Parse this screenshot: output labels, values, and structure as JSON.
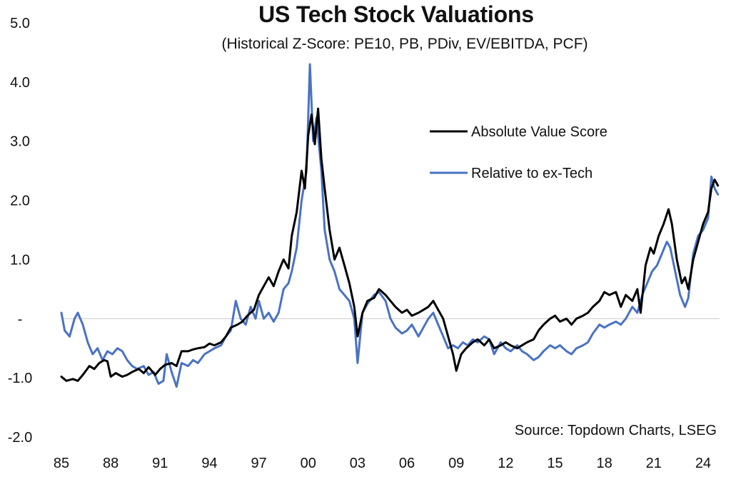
{
  "chart_data": {
    "type": "line",
    "title": "US Tech Stock Valuations",
    "subtitle": "(Historical Z-Score: PE10, PB, PDiv, EV/EBITDA, PCF)",
    "source": "Source: Topdown Charts, LSEG",
    "xlim": [
      1985,
      2025
    ],
    "ylim": [
      -2.0,
      5.0
    ],
    "x_ticks": [
      {
        "value": 1985,
        "label": "85"
      },
      {
        "value": 1988,
        "label": "88"
      },
      {
        "value": 1991,
        "label": "91"
      },
      {
        "value": 1994,
        "label": "94"
      },
      {
        "value": 1997,
        "label": "97"
      },
      {
        "value": 2000,
        "label": "00"
      },
      {
        "value": 2003,
        "label": "03"
      },
      {
        "value": 2006,
        "label": "06"
      },
      {
        "value": 2009,
        "label": "09"
      },
      {
        "value": 2012,
        "label": "12"
      },
      {
        "value": 2015,
        "label": "15"
      },
      {
        "value": 2018,
        "label": "18"
      },
      {
        "value": 2021,
        "label": "21"
      },
      {
        "value": 2024,
        "label": "24"
      }
    ],
    "y_ticks": [
      {
        "value": 5.0,
        "label": "5.0"
      },
      {
        "value": 4.0,
        "label": "4.0"
      },
      {
        "value": 3.0,
        "label": "3.0"
      },
      {
        "value": 2.0,
        "label": "2.0"
      },
      {
        "value": 1.0,
        "label": "1.0"
      },
      {
        "value": 0,
        "label": "-"
      },
      {
        "value": -1.0,
        "label": "-1.0"
      },
      {
        "value": -2.0,
        "label": "-2.0"
      }
    ],
    "grid": false,
    "zero_line": true,
    "legend_position": "upper-right",
    "series": [
      {
        "name": "Absolute Value Score",
        "color": "#000000",
        "points": [
          [
            1985.0,
            -0.98
          ],
          [
            1985.3,
            -1.05
          ],
          [
            1985.7,
            -1.02
          ],
          [
            1986.0,
            -1.05
          ],
          [
            1986.3,
            -0.95
          ],
          [
            1986.7,
            -0.8
          ],
          [
            1987.0,
            -0.85
          ],
          [
            1987.3,
            -0.75
          ],
          [
            1987.6,
            -0.7
          ],
          [
            1987.8,
            -0.72
          ],
          [
            1988.0,
            -0.98
          ],
          [
            1988.3,
            -0.92
          ],
          [
            1988.7,
            -0.98
          ],
          [
            1989.0,
            -0.95
          ],
          [
            1989.3,
            -0.9
          ],
          [
            1989.7,
            -0.85
          ],
          [
            1990.0,
            -0.92
          ],
          [
            1990.3,
            -0.82
          ],
          [
            1990.7,
            -0.95
          ],
          [
            1991.0,
            -0.85
          ],
          [
            1991.3,
            -0.78
          ],
          [
            1991.7,
            -0.75
          ],
          [
            1992.0,
            -0.8
          ],
          [
            1992.3,
            -0.55
          ],
          [
            1992.7,
            -0.55
          ],
          [
            1993.0,
            -0.52
          ],
          [
            1993.3,
            -0.5
          ],
          [
            1993.7,
            -0.48
          ],
          [
            1994.0,
            -0.42
          ],
          [
            1994.3,
            -0.45
          ],
          [
            1994.7,
            -0.4
          ],
          [
            1995.0,
            -0.3
          ],
          [
            1995.3,
            -0.15
          ],
          [
            1995.7,
            -0.1
          ],
          [
            1996.0,
            -0.05
          ],
          [
            1996.3,
            0.05
          ],
          [
            1996.7,
            0.15
          ],
          [
            1997.0,
            0.4
          ],
          [
            1997.3,
            0.55
          ],
          [
            1997.6,
            0.7
          ],
          [
            1997.9,
            0.55
          ],
          [
            1998.2,
            0.8
          ],
          [
            1998.5,
            1.0
          ],
          [
            1998.8,
            0.85
          ],
          [
            1999.0,
            1.4
          ],
          [
            1999.3,
            1.8
          ],
          [
            1999.6,
            2.5
          ],
          [
            1999.8,
            2.2
          ],
          [
            2000.0,
            3.1
          ],
          [
            2000.2,
            3.45
          ],
          [
            2000.4,
            2.95
          ],
          [
            2000.6,
            3.55
          ],
          [
            2000.8,
            2.7
          ],
          [
            2001.0,
            2.2
          ],
          [
            2001.3,
            1.5
          ],
          [
            2001.6,
            1.0
          ],
          [
            2001.9,
            1.2
          ],
          [
            2002.2,
            0.9
          ],
          [
            2002.5,
            0.6
          ],
          [
            2002.8,
            0.2
          ],
          [
            2003.0,
            -0.3
          ],
          [
            2003.3,
            0.1
          ],
          [
            2003.6,
            0.3
          ],
          [
            2004.0,
            0.35
          ],
          [
            2004.3,
            0.5
          ],
          [
            2004.7,
            0.4
          ],
          [
            2005.0,
            0.3
          ],
          [
            2005.3,
            0.2
          ],
          [
            2005.7,
            0.1
          ],
          [
            2006.0,
            0.15
          ],
          [
            2006.3,
            0.05
          ],
          [
            2006.7,
            0.1
          ],
          [
            2007.0,
            0.15
          ],
          [
            2007.3,
            0.2
          ],
          [
            2007.6,
            0.3
          ],
          [
            2007.9,
            0.15
          ],
          [
            2008.2,
            0.0
          ],
          [
            2008.5,
            -0.3
          ],
          [
            2008.8,
            -0.6
          ],
          [
            2009.0,
            -0.88
          ],
          [
            2009.3,
            -0.6
          ],
          [
            2009.6,
            -0.5
          ],
          [
            2010.0,
            -0.4
          ],
          [
            2010.3,
            -0.35
          ],
          [
            2010.7,
            -0.45
          ],
          [
            2011.0,
            -0.35
          ],
          [
            2011.3,
            -0.5
          ],
          [
            2011.7,
            -0.45
          ],
          [
            2012.0,
            -0.4
          ],
          [
            2012.3,
            -0.45
          ],
          [
            2012.7,
            -0.5
          ],
          [
            2013.0,
            -0.45
          ],
          [
            2013.3,
            -0.4
          ],
          [
            2013.7,
            -0.35
          ],
          [
            2014.0,
            -0.2
          ],
          [
            2014.3,
            -0.1
          ],
          [
            2014.7,
            0.0
          ],
          [
            2015.0,
            0.05
          ],
          [
            2015.3,
            -0.05
          ],
          [
            2015.7,
            0.0
          ],
          [
            2016.0,
            -0.1
          ],
          [
            2016.3,
            0.0
          ],
          [
            2016.7,
            0.05
          ],
          [
            2017.0,
            0.1
          ],
          [
            2017.3,
            0.2
          ],
          [
            2017.7,
            0.3
          ],
          [
            2018.0,
            0.45
          ],
          [
            2018.3,
            0.4
          ],
          [
            2018.7,
            0.45
          ],
          [
            2019.0,
            0.2
          ],
          [
            2019.3,
            0.4
          ],
          [
            2019.7,
            0.3
          ],
          [
            2020.0,
            0.5
          ],
          [
            2020.2,
            0.1
          ],
          [
            2020.5,
            0.9
          ],
          [
            2020.8,
            1.2
          ],
          [
            2021.0,
            1.1
          ],
          [
            2021.3,
            1.4
          ],
          [
            2021.6,
            1.6
          ],
          [
            2021.9,
            1.85
          ],
          [
            2022.1,
            1.6
          ],
          [
            2022.4,
            1.0
          ],
          [
            2022.7,
            0.6
          ],
          [
            2022.9,
            0.7
          ],
          [
            2023.1,
            0.5
          ],
          [
            2023.4,
            1.0
          ],
          [
            2023.7,
            1.3
          ],
          [
            2024.0,
            1.6
          ],
          [
            2024.3,
            1.8
          ],
          [
            2024.5,
            2.2
          ],
          [
            2024.7,
            2.35
          ],
          [
            2024.9,
            2.25
          ]
        ]
      },
      {
        "name": "Relative to ex-Tech",
        "color": "#4a72c4",
        "points": [
          [
            1985.0,
            0.1
          ],
          [
            1985.2,
            -0.2
          ],
          [
            1985.5,
            -0.3
          ],
          [
            1985.8,
            0.0
          ],
          [
            1986.0,
            0.1
          ],
          [
            1986.3,
            -0.1
          ],
          [
            1986.6,
            -0.4
          ],
          [
            1986.9,
            -0.6
          ],
          [
            1987.2,
            -0.5
          ],
          [
            1987.5,
            -0.7
          ],
          [
            1987.8,
            -0.55
          ],
          [
            1988.1,
            -0.6
          ],
          [
            1988.4,
            -0.5
          ],
          [
            1988.7,
            -0.55
          ],
          [
            1989.0,
            -0.7
          ],
          [
            1989.3,
            -0.8
          ],
          [
            1989.6,
            -0.85
          ],
          [
            1990.0,
            -0.8
          ],
          [
            1990.3,
            -0.95
          ],
          [
            1990.6,
            -0.9
          ],
          [
            1990.9,
            -1.1
          ],
          [
            1991.2,
            -1.05
          ],
          [
            1991.4,
            -0.6
          ],
          [
            1991.7,
            -0.9
          ],
          [
            1992.0,
            -1.15
          ],
          [
            1992.3,
            -0.75
          ],
          [
            1992.7,
            -0.8
          ],
          [
            1993.0,
            -0.7
          ],
          [
            1993.3,
            -0.75
          ],
          [
            1993.7,
            -0.6
          ],
          [
            1994.0,
            -0.55
          ],
          [
            1994.3,
            -0.5
          ],
          [
            1994.7,
            -0.45
          ],
          [
            1995.0,
            -0.3
          ],
          [
            1995.3,
            -0.2
          ],
          [
            1995.6,
            0.3
          ],
          [
            1995.9,
            0.0
          ],
          [
            1996.2,
            -0.1
          ],
          [
            1996.5,
            0.2
          ],
          [
            1996.8,
            0.0
          ],
          [
            1997.0,
            0.3
          ],
          [
            1997.3,
            0.0
          ],
          [
            1997.6,
            0.1
          ],
          [
            1997.9,
            -0.05
          ],
          [
            1998.2,
            0.1
          ],
          [
            1998.5,
            0.5
          ],
          [
            1998.8,
            0.6
          ],
          [
            1999.0,
            0.8
          ],
          [
            1999.3,
            1.2
          ],
          [
            1999.6,
            2.0
          ],
          [
            1999.9,
            2.5
          ],
          [
            2000.1,
            4.3
          ],
          [
            2000.3,
            3.0
          ],
          [
            2000.5,
            3.4
          ],
          [
            2000.8,
            2.5
          ],
          [
            2001.0,
            1.5
          ],
          [
            2001.3,
            1.0
          ],
          [
            2001.6,
            0.8
          ],
          [
            2001.9,
            0.5
          ],
          [
            2002.2,
            0.4
          ],
          [
            2002.5,
            0.3
          ],
          [
            2002.8,
            0.0
          ],
          [
            2003.0,
            -0.75
          ],
          [
            2003.3,
            0.1
          ],
          [
            2003.6,
            0.25
          ],
          [
            2004.0,
            0.4
          ],
          [
            2004.3,
            0.45
          ],
          [
            2004.7,
            0.3
          ],
          [
            2005.0,
            0.0
          ],
          [
            2005.3,
            -0.15
          ],
          [
            2005.7,
            -0.25
          ],
          [
            2006.0,
            -0.2
          ],
          [
            2006.3,
            -0.1
          ],
          [
            2006.7,
            -0.3
          ],
          [
            2007.0,
            -0.15
          ],
          [
            2007.3,
            0.0
          ],
          [
            2007.6,
            0.1
          ],
          [
            2007.9,
            -0.1
          ],
          [
            2008.2,
            -0.3
          ],
          [
            2008.5,
            -0.5
          ],
          [
            2008.8,
            -0.45
          ],
          [
            2009.1,
            -0.5
          ],
          [
            2009.4,
            -0.4
          ],
          [
            2009.7,
            -0.45
          ],
          [
            2010.0,
            -0.35
          ],
          [
            2010.3,
            -0.4
          ],
          [
            2010.7,
            -0.3
          ],
          [
            2011.0,
            -0.35
          ],
          [
            2011.3,
            -0.6
          ],
          [
            2011.7,
            -0.4
          ],
          [
            2012.0,
            -0.5
          ],
          [
            2012.3,
            -0.55
          ],
          [
            2012.7,
            -0.45
          ],
          [
            2013.0,
            -0.55
          ],
          [
            2013.3,
            -0.6
          ],
          [
            2013.7,
            -0.7
          ],
          [
            2014.0,
            -0.65
          ],
          [
            2014.3,
            -0.55
          ],
          [
            2014.7,
            -0.45
          ],
          [
            2015.0,
            -0.5
          ],
          [
            2015.3,
            -0.45
          ],
          [
            2015.7,
            -0.55
          ],
          [
            2016.0,
            -0.6
          ],
          [
            2016.3,
            -0.5
          ],
          [
            2016.7,
            -0.45
          ],
          [
            2017.0,
            -0.4
          ],
          [
            2017.3,
            -0.25
          ],
          [
            2017.7,
            -0.1
          ],
          [
            2018.0,
            -0.15
          ],
          [
            2018.3,
            -0.1
          ],
          [
            2018.7,
            -0.05
          ],
          [
            2019.0,
            -0.1
          ],
          [
            2019.3,
            0.0
          ],
          [
            2019.7,
            0.2
          ],
          [
            2020.0,
            0.1
          ],
          [
            2020.3,
            0.4
          ],
          [
            2020.6,
            0.6
          ],
          [
            2020.9,
            0.8
          ],
          [
            2021.2,
            0.9
          ],
          [
            2021.5,
            1.1
          ],
          [
            2021.8,
            1.3
          ],
          [
            2022.0,
            1.2
          ],
          [
            2022.3,
            0.8
          ],
          [
            2022.6,
            0.4
          ],
          [
            2022.9,
            0.2
          ],
          [
            2023.1,
            0.35
          ],
          [
            2023.4,
            1.1
          ],
          [
            2023.7,
            1.4
          ],
          [
            2024.0,
            1.5
          ],
          [
            2024.3,
            1.7
          ],
          [
            2024.5,
            2.4
          ],
          [
            2024.7,
            2.2
          ],
          [
            2024.9,
            2.1
          ]
        ]
      }
    ]
  }
}
